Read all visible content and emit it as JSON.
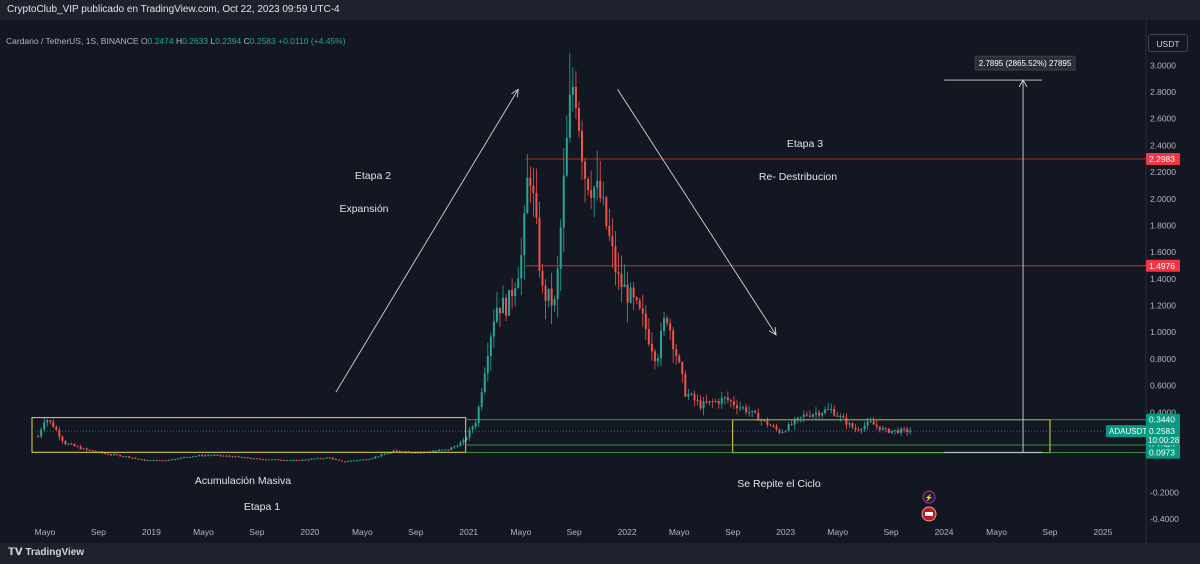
{
  "header": {
    "publisher_line": "CryptoClub_VIP publicado en TradingView.com, Oct 22, 2023 09:59 UTC-4"
  },
  "legend": {
    "symbol": "Cardano / TetherUS, 1S, BINANCE",
    "o_label": "O",
    "o_value": "0.2474",
    "h_label": "H",
    "h_value": "0.2633",
    "l_label": "L",
    "l_value": "0.2394",
    "c_label": "C",
    "c_value": "0.2583",
    "change": "+0.0110 (+4.45%)"
  },
  "toolbar": {
    "currency_button": "USDT"
  },
  "footer": {
    "brand": "TradingView"
  },
  "colors": {
    "background": "#131722",
    "up": "#26a69a",
    "down": "#ef5350",
    "box": "#e6d844",
    "green_line": "#4caf50",
    "red_line": "#f23645"
  },
  "chart_data": {
    "type": "candlestick",
    "symbol": "ADAUSDT",
    "interval": "1S",
    "y_axis": {
      "range": [
        -0.46,
        3.1
      ],
      "ticks": [
        "3.0000",
        "2.8000",
        "2.6000",
        "2.4000",
        "2.2000",
        "2.0000",
        "1.8000",
        "1.6000",
        "1.4000",
        "1.2000",
        "1.0000",
        "0.8000",
        "0.6000",
        "0.4000",
        "-0.2000",
        "-0.4000"
      ],
      "tick_values": [
        3.0,
        2.8,
        2.6,
        2.4,
        2.2,
        2.0,
        1.8,
        1.6,
        1.4,
        1.2,
        1.0,
        0.8,
        0.6,
        0.4,
        -0.2,
        -0.4
      ]
    },
    "x_axis": {
      "range": [
        "2018-04-01",
        "2025-04-01"
      ],
      "ticks": [
        {
          "label": "Mayo",
          "date": "2018-05-01"
        },
        {
          "label": "Sep",
          "date": "2018-09-01"
        },
        {
          "label": "2019",
          "date": "2019-01-01"
        },
        {
          "label": "Mayo",
          "date": "2019-05-01"
        },
        {
          "label": "Sep",
          "date": "2019-09-01"
        },
        {
          "label": "2020",
          "date": "2020-01-01"
        },
        {
          "label": "Mayo",
          "date": "2020-05-01"
        },
        {
          "label": "Sep",
          "date": "2020-09-01"
        },
        {
          "label": "2021",
          "date": "2021-01-01"
        },
        {
          "label": "Mayo",
          "date": "2021-05-01"
        },
        {
          "label": "Sep",
          "date": "2021-09-01"
        },
        {
          "label": "2022",
          "date": "2022-01-01"
        },
        {
          "label": "Mayo",
          "date": "2022-05-01"
        },
        {
          "label": "Sep",
          "date": "2022-09-01"
        },
        {
          "label": "2023",
          "date": "2023-01-01"
        },
        {
          "label": "Mayo",
          "date": "2023-05-01"
        },
        {
          "label": "Sep",
          "date": "2023-09-01"
        },
        {
          "label": "2024",
          "date": "2024-01-01"
        },
        {
          "label": "Mayo",
          "date": "2024-05-01"
        },
        {
          "label": "Sep",
          "date": "2024-09-01"
        },
        {
          "label": "2025",
          "date": "2025-01-01"
        }
      ]
    },
    "price_path": [
      {
        "date": "2018-04-15",
        "price": 0.22
      },
      {
        "date": "2018-05-01",
        "price": 0.36
      },
      {
        "date": "2018-05-20",
        "price": 0.3
      },
      {
        "date": "2018-06-15",
        "price": 0.17
      },
      {
        "date": "2018-08-01",
        "price": 0.12
      },
      {
        "date": "2018-09-15",
        "price": 0.09
      },
      {
        "date": "2018-11-01",
        "price": 0.07
      },
      {
        "date": "2018-12-15",
        "price": 0.04
      },
      {
        "date": "2019-02-01",
        "price": 0.04
      },
      {
        "date": "2019-04-01",
        "price": 0.07
      },
      {
        "date": "2019-05-15",
        "price": 0.08
      },
      {
        "date": "2019-07-01",
        "price": 0.07
      },
      {
        "date": "2019-09-01",
        "price": 0.05
      },
      {
        "date": "2019-12-01",
        "price": 0.04
      },
      {
        "date": "2020-02-15",
        "price": 0.06
      },
      {
        "date": "2020-03-15",
        "price": 0.03
      },
      {
        "date": "2020-05-15",
        "price": 0.05
      },
      {
        "date": "2020-07-15",
        "price": 0.11
      },
      {
        "date": "2020-09-15",
        "price": 0.1
      },
      {
        "date": "2020-11-15",
        "price": 0.12
      },
      {
        "date": "2020-12-20",
        "price": 0.18
      },
      {
        "date": "2021-01-20",
        "price": 0.35
      },
      {
        "date": "2021-02-15",
        "price": 0.9
      },
      {
        "date": "2021-03-05",
        "price": 1.2
      },
      {
        "date": "2021-04-01",
        "price": 1.2
      },
      {
        "date": "2021-05-05",
        "price": 1.6
      },
      {
        "date": "2021-05-20",
        "price": 2.3
      },
      {
        "date": "2021-06-20",
        "price": 1.3
      },
      {
        "date": "2021-07-20",
        "price": 1.2
      },
      {
        "date": "2021-08-10",
        "price": 2.2
      },
      {
        "date": "2021-08-25",
        "price": 2.8
      },
      {
        "date": "2021-09-02",
        "price": 2.9
      },
      {
        "date": "2021-09-25",
        "price": 2.2
      },
      {
        "date": "2021-11-01",
        "price": 2.0
      },
      {
        "date": "2021-12-10",
        "price": 1.4
      },
      {
        "date": "2022-01-10",
        "price": 1.25
      },
      {
        "date": "2022-02-05",
        "price": 1.1
      },
      {
        "date": "2022-03-10",
        "price": 0.8
      },
      {
        "date": "2022-04-01",
        "price": 1.15
      },
      {
        "date": "2022-05-15",
        "price": 0.55
      },
      {
        "date": "2022-06-20",
        "price": 0.45
      },
      {
        "date": "2022-08-15",
        "price": 0.5
      },
      {
        "date": "2022-10-01",
        "price": 0.42
      },
      {
        "date": "2022-12-20",
        "price": 0.25
      },
      {
        "date": "2023-02-15",
        "price": 0.38
      },
      {
        "date": "2023-04-15",
        "price": 0.42
      },
      {
        "date": "2023-06-10",
        "price": 0.27
      },
      {
        "date": "2023-07-15",
        "price": 0.32
      },
      {
        "date": "2023-08-20",
        "price": 0.26
      },
      {
        "date": "2023-10-15",
        "price": 0.26
      }
    ],
    "horizontal_levels": [
      {
        "price": 0.344,
        "label": "0.3440",
        "color": "#089981",
        "extend": "full"
      },
      {
        "price": 0.1545,
        "label": "0.1545",
        "color": "#089981",
        "extend": "full"
      },
      {
        "price": 0.0973,
        "label": "0.0973",
        "color": "#089981",
        "extend": "full"
      },
      {
        "price": 2.2983,
        "label": "2.2983",
        "color": "#f23645",
        "extend": "from-2021-05-12"
      },
      {
        "price": 1.4976,
        "label": "1.4976",
        "color": "#f23645",
        "extend": "from-2021-05-12"
      }
    ],
    "current_price": {
      "symbol": "ADAUSDT",
      "price": 0.2583,
      "label": "0.2583",
      "countdown": "10:00:28"
    },
    "rectangles": [
      {
        "from": "2018-04-01",
        "to": "2020-12-25",
        "price_low": 0.1,
        "price_high": 0.36
      },
      {
        "from": "2022-09-01",
        "to": "2024-09-01",
        "price_low": 0.0973,
        "price_high": 0.344
      }
    ],
    "measure_tool": {
      "from_price": 0.1,
      "to_price": 2.89,
      "date": "2024-07-01",
      "label": "2.7895 (2865.52%) 27895"
    },
    "annotations": [
      {
        "text": "Etapa 2"
      },
      {
        "text": "Expansión"
      },
      {
        "text": "Etapa 3"
      },
      {
        "text": "Re- Destribucion"
      },
      {
        "text": "Acumulación Masiva"
      },
      {
        "text": "Etapa 1"
      },
      {
        "text": "Se Repite el Ciclo"
      }
    ],
    "arrows": [
      {
        "from": {
          "date": "2020-03-01",
          "price": 0.55
        },
        "to": {
          "date": "2021-04-25",
          "price": 2.82
        },
        "color": "#d1d4dc"
      },
      {
        "from": {
          "date": "2021-12-10",
          "price": 2.82
        },
        "to": {
          "date": "2022-12-10",
          "price": 0.98
        },
        "color": "#d1d4dc"
      }
    ]
  }
}
